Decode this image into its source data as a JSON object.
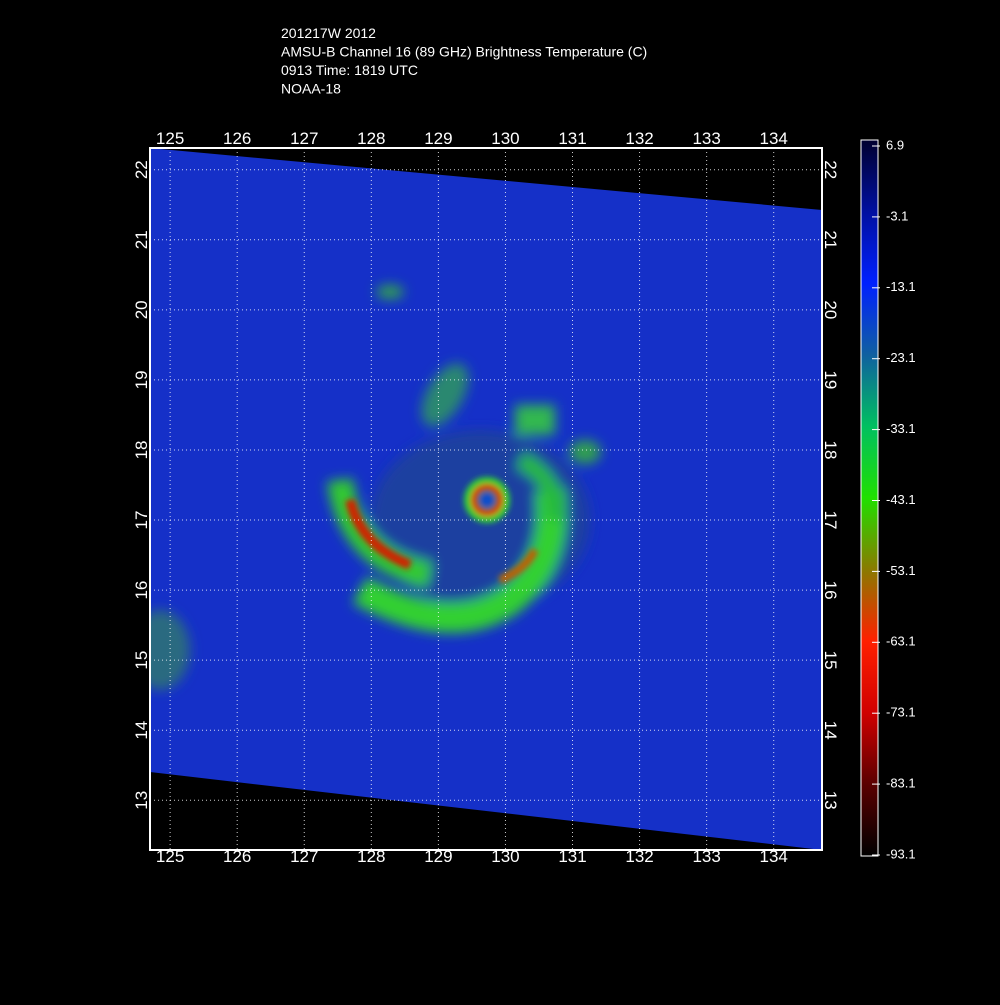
{
  "header": {
    "lines": [
      "201217W 2012",
      "AMSU-B Channel 16 (89 GHz) Brightness Temperature (C)",
      "0913 Time: 1819 UTC",
      "NOAA-18"
    ]
  },
  "map": {
    "xlim": [
      124.7,
      134.72
    ],
    "ylim": [
      12.29,
      22.31
    ],
    "xticks": [
      125,
      126,
      127,
      128,
      129,
      130,
      131,
      132,
      133,
      134
    ],
    "yticks": [
      13,
      14,
      15,
      16,
      17,
      18,
      19,
      20,
      21,
      22
    ],
    "grid": true
  },
  "colorbar": {
    "lim": [
      -93.1,
      6.9
    ],
    "ticks": [
      6.9,
      -3.1,
      -13.1,
      -23.1,
      -33.1,
      -43.1,
      -53.1,
      -63.1,
      -73.1,
      -83.1,
      -93.1
    ],
    "colors": [
      "#000000",
      "#5a0000",
      "#d00000",
      "#ff2000",
      "#8a7a00",
      "#20e000",
      "#00c060",
      "#1060a0",
      "#0020ff",
      "#0010a0",
      "#000030"
    ]
  }
}
